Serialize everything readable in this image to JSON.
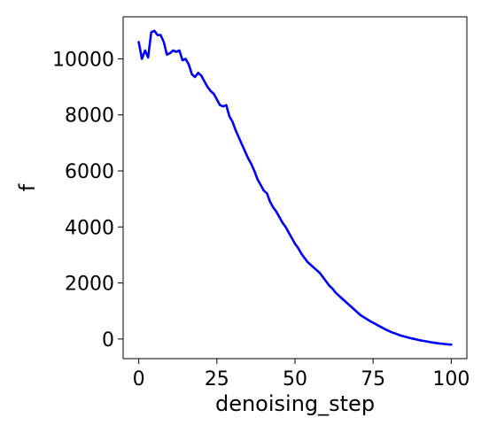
{
  "chart_data": {
    "type": "line",
    "title": "",
    "xlabel": "denoising_step",
    "ylabel": "f",
    "xlim": [
      -5,
      105
    ],
    "ylim": [
      -700,
      11500
    ],
    "xticks": [
      0,
      25,
      50,
      75,
      100
    ],
    "yticks": [
      0,
      2000,
      4000,
      6000,
      8000,
      10000
    ],
    "grid": false,
    "legend": "none",
    "series": [
      {
        "color": "#0000ff",
        "x": [
          0,
          1,
          2,
          3,
          4,
          5,
          6,
          7,
          8,
          9,
          10,
          11,
          12,
          13,
          14,
          15,
          16,
          17,
          18,
          19,
          20,
          21,
          22,
          23,
          24,
          25,
          26,
          27,
          28,
          29,
          30,
          31,
          32,
          33,
          34,
          35,
          36,
          37,
          38,
          39,
          40,
          41,
          42,
          43,
          44,
          45,
          46,
          47,
          48,
          49,
          50,
          51,
          52,
          53,
          54,
          55,
          56,
          57,
          58,
          59,
          60,
          61,
          62,
          63,
          64,
          65,
          66,
          67,
          68,
          69,
          70,
          71,
          72,
          73,
          74,
          75,
          76,
          77,
          78,
          79,
          80,
          81,
          82,
          83,
          84,
          85,
          86,
          87,
          88,
          89,
          90,
          91,
          92,
          93,
          94,
          95,
          96,
          97,
          98,
          99,
          100
        ],
        "y": [
          10600,
          10000,
          10300,
          10050,
          10950,
          11000,
          10850,
          10850,
          10600,
          10150,
          10200,
          10300,
          10250,
          10300,
          9950,
          10000,
          9800,
          9450,
          9350,
          9500,
          9400,
          9200,
          9000,
          8850,
          8750,
          8550,
          8350,
          8300,
          8350,
          7950,
          7750,
          7450,
          7200,
          6950,
          6700,
          6450,
          6250,
          6000,
          5700,
          5500,
          5300,
          5200,
          4900,
          4700,
          4550,
          4350,
          4150,
          4000,
          3800,
          3600,
          3400,
          3250,
          3050,
          2900,
          2750,
          2650,
          2550,
          2450,
          2350,
          2200,
          2050,
          1900,
          1800,
          1650,
          1550,
          1450,
          1350,
          1250,
          1150,
          1050,
          950,
          850,
          780,
          710,
          640,
          580,
          520,
          460,
          400,
          340,
          290,
          240,
          200,
          160,
          120,
          90,
          60,
          30,
          5,
          -20,
          -45,
          -65,
          -85,
          -105,
          -125,
          -140,
          -155,
          -170,
          -180,
          -190,
          -200
        ]
      }
    ]
  }
}
